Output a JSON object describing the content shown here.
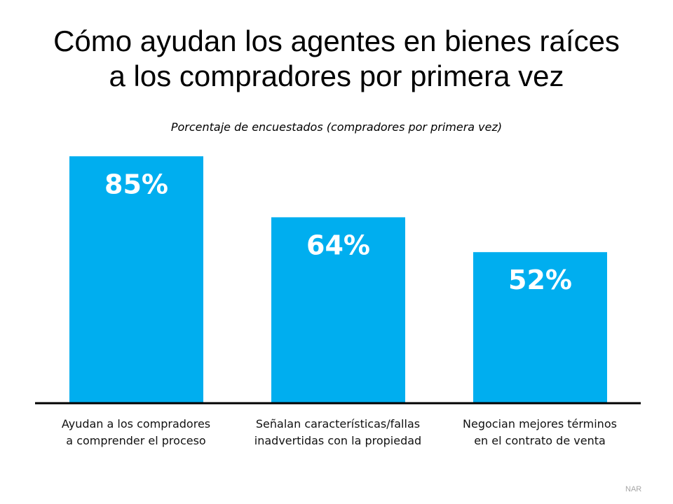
{
  "chart_data": {
    "type": "bar",
    "title": "Cómo ayudan los agentes en bienes raíces a los compradores por primera vez",
    "title_lines": [
      "Cómo ayudan los agentes en bienes raíces",
      "a los compradores por primera vez"
    ],
    "subtitle": "Porcentaje de encuestados (compradores por primera vez)",
    "categories": [
      [
        "Ayudan a los compradores",
        "a comprender el proceso"
      ],
      [
        "Señalan características/fallas",
        "inadvertidas con la propiedad"
      ],
      [
        "Negocian mejores términos",
        "en el contrato de venta"
      ]
    ],
    "values": [
      85,
      64,
      52
    ],
    "data_labels": [
      "85%",
      "64%",
      "52%"
    ],
    "ylim": [
      0,
      100
    ],
    "grid": false,
    "legend": "none",
    "bar_color": "#00AEEF",
    "label_color": "#FFFFFF",
    "source": "NAR"
  }
}
